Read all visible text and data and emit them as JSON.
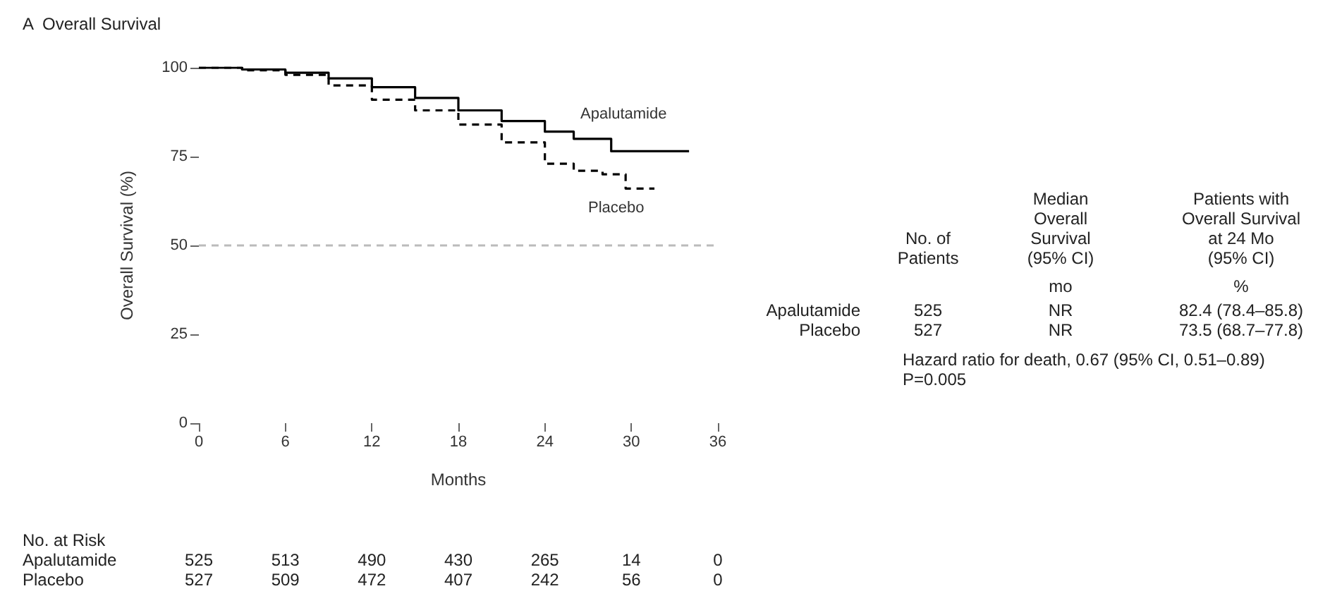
{
  "chart_data": {
    "type": "step",
    "title": "A  Overall Survival",
    "xlabel": "Months",
    "ylabel": "Overall Survival (%)",
    "xlim": [
      0,
      36
    ],
    "xticks": [
      0,
      6,
      12,
      18,
      24,
      30,
      36
    ],
    "ylim": [
      0,
      100
    ],
    "yticks": [
      0,
      25,
      50,
      75,
      100
    ],
    "grid": false,
    "legend": false,
    "marker": "none",
    "series": [
      {
        "name": "Apalutamide",
        "color": "#000000",
        "line_style": "solid",
        "x": [
          0,
          3,
          6,
          9,
          12,
          15,
          18,
          21,
          24,
          26,
          28.6,
          34
        ],
        "values": [
          100,
          99.5,
          98.6,
          97,
          94.5,
          91.5,
          88,
          85,
          82,
          80,
          76.5,
          76.5
        ]
      },
      {
        "name": "Placebo",
        "color": "#000000",
        "line_style": "dashed",
        "x": [
          0,
          3,
          6,
          9,
          12,
          15,
          18,
          21,
          24,
          26,
          28,
          29.6,
          31.6
        ],
        "values": [
          100,
          99.3,
          98,
          95,
          91,
          88,
          84,
          79,
          73,
          71,
          70,
          66,
          66
        ]
      }
    ],
    "ref_lines": [
      {
        "axis": "y",
        "value": 50,
        "color": "#bbbbbb",
        "line_style": "dashed"
      }
    ],
    "annotations": [
      "No. of\nPatients",
      "Median\nOverall\nSurvival\n(95% CI)",
      "Patients with\nOverall Survival\nat 24 Mo\n(95% CI)",
      "mo",
      "%",
      "Apalutamide",
      "525",
      "NR",
      "82.4 (78.4–85.8)",
      "Placebo",
      "527",
      "NR",
      "73.5 (68.7–77.8)",
      "Hazard ratio for death, 0.67 (95% CI, 0.51–0.89)",
      "P=0.005",
      "No. at Risk",
      "Apalutamide",
      "525",
      "513",
      "490",
      "430",
      "265",
      "14",
      "0",
      "Placebo",
      "527",
      "509",
      "472",
      "407",
      "242",
      "56",
      "0"
    ]
  }
}
